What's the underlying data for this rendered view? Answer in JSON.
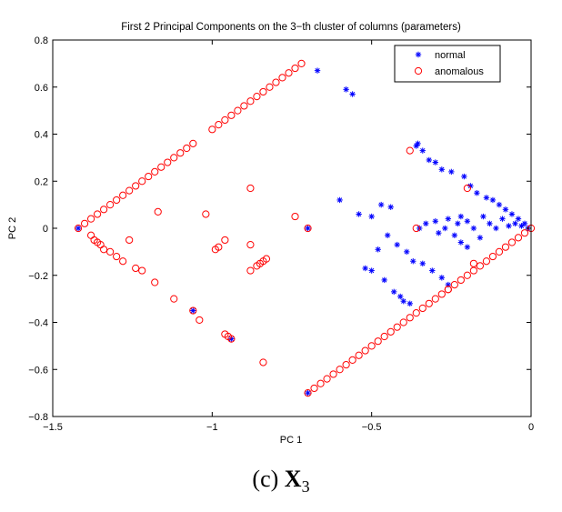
{
  "chart_data": {
    "type": "scatter",
    "title": "First 2 Principal Components on the 3−th cluster of columns (parameters)",
    "xlabel": "PC 1",
    "ylabel": "PC 2",
    "xlim": [
      -1.5,
      0
    ],
    "ylim": [
      -0.8,
      0.8
    ],
    "xticks": [
      -1.5,
      -1,
      -0.5,
      0
    ],
    "xtick_labels": [
      "−1.5",
      "−1",
      "−0.5",
      "0"
    ],
    "yticks": [
      -0.8,
      -0.6,
      -0.4,
      -0.2,
      0,
      0.2,
      0.4,
      0.6,
      0.8
    ],
    "ytick_labels": [
      "−0.8",
      "−0.6",
      "−0.4",
      "−0.2",
      "0",
      "0.2",
      "0.4",
      "0.6",
      "0.8"
    ],
    "grid": false,
    "legend_position": "top-right",
    "series": [
      {
        "name": "normal",
        "marker": "asterisk",
        "color": "#0000ff",
        "points": [
          [
            -1.42,
            0.0
          ],
          [
            -1.06,
            -0.35
          ],
          [
            -0.94,
            -0.47
          ],
          [
            -0.7,
            0.0
          ],
          [
            -0.7,
            -0.7
          ],
          [
            -0.67,
            0.67
          ],
          [
            -0.6,
            0.12
          ],
          [
            -0.58,
            0.59
          ],
          [
            -0.56,
            0.57
          ],
          [
            -0.54,
            0.06
          ],
          [
            -0.52,
            -0.17
          ],
          [
            -0.5,
            0.05
          ],
          [
            -0.5,
            -0.18
          ],
          [
            -0.48,
            -0.09
          ],
          [
            -0.47,
            0.1
          ],
          [
            -0.46,
            -0.22
          ],
          [
            -0.45,
            -0.03
          ],
          [
            -0.44,
            0.09
          ],
          [
            -0.43,
            -0.27
          ],
          [
            -0.42,
            -0.07
          ],
          [
            -0.41,
            -0.29
          ],
          [
            -0.4,
            -0.31
          ],
          [
            -0.39,
            -0.1
          ],
          [
            -0.38,
            -0.32
          ],
          [
            -0.37,
            -0.14
          ],
          [
            -0.36,
            0.35
          ],
          [
            -0.355,
            0.36
          ],
          [
            -0.35,
            0.0
          ],
          [
            -0.34,
            -0.15
          ],
          [
            -0.34,
            0.33
          ],
          [
            -0.33,
            0.02
          ],
          [
            -0.32,
            0.29
          ],
          [
            -0.31,
            -0.18
          ],
          [
            -0.3,
            0.03
          ],
          [
            -0.3,
            0.28
          ],
          [
            -0.29,
            -0.02
          ],
          [
            -0.28,
            -0.21
          ],
          [
            -0.28,
            0.25
          ],
          [
            -0.27,
            0.0
          ],
          [
            -0.26,
            -0.24
          ],
          [
            -0.26,
            0.04
          ],
          [
            -0.25,
            0.24
          ],
          [
            -0.24,
            -0.03
          ],
          [
            -0.23,
            0.02
          ],
          [
            -0.22,
            -0.06
          ],
          [
            -0.22,
            0.05
          ],
          [
            -0.21,
            0.22
          ],
          [
            -0.2,
            -0.08
          ],
          [
            -0.2,
            0.03
          ],
          [
            -0.19,
            0.18
          ],
          [
            -0.18,
            0.0
          ],
          [
            -0.17,
            0.15
          ],
          [
            -0.16,
            -0.04
          ],
          [
            -0.15,
            0.05
          ],
          [
            -0.14,
            0.13
          ],
          [
            -0.13,
            0.02
          ],
          [
            -0.12,
            0.12
          ],
          [
            -0.11,
            0.0
          ],
          [
            -0.1,
            0.1
          ],
          [
            -0.09,
            0.04
          ],
          [
            -0.08,
            0.08
          ],
          [
            -0.07,
            0.01
          ],
          [
            -0.06,
            0.06
          ],
          [
            -0.05,
            0.02
          ],
          [
            -0.04,
            0.04
          ],
          [
            -0.03,
            0.01
          ],
          [
            -0.02,
            0.02
          ],
          [
            -0.01,
            0.0
          ]
        ]
      },
      {
        "name": "anomalous",
        "marker": "circle",
        "color": "#ff0000",
        "points": [
          [
            -1.42,
            0.0
          ],
          [
            -1.4,
            0.02
          ],
          [
            -1.38,
            0.04
          ],
          [
            -1.36,
            0.06
          ],
          [
            -1.34,
            0.08
          ],
          [
            -1.32,
            0.1
          ],
          [
            -1.3,
            0.12
          ],
          [
            -1.28,
            0.14
          ],
          [
            -1.26,
            0.16
          ],
          [
            -1.24,
            0.18
          ],
          [
            -1.22,
            0.2
          ],
          [
            -1.2,
            0.22
          ],
          [
            -1.18,
            0.24
          ],
          [
            -1.16,
            0.26
          ],
          [
            -1.14,
            0.28
          ],
          [
            -1.12,
            0.3
          ],
          [
            -1.1,
            0.32
          ],
          [
            -1.08,
            0.34
          ],
          [
            -1.06,
            0.36
          ],
          [
            -1.0,
            0.42
          ],
          [
            -0.98,
            0.44
          ],
          [
            -0.96,
            0.46
          ],
          [
            -0.94,
            0.48
          ],
          [
            -0.92,
            0.5
          ],
          [
            -0.9,
            0.52
          ],
          [
            -0.88,
            0.54
          ],
          [
            -0.86,
            0.56
          ],
          [
            -0.84,
            0.58
          ],
          [
            -0.82,
            0.6
          ],
          [
            -0.8,
            0.62
          ],
          [
            -0.78,
            0.64
          ],
          [
            -0.76,
            0.66
          ],
          [
            -0.74,
            0.68
          ],
          [
            -0.72,
            0.7
          ],
          [
            -1.38,
            -0.03
          ],
          [
            -1.37,
            -0.05
          ],
          [
            -1.36,
            -0.06
          ],
          [
            -1.35,
            -0.07
          ],
          [
            -1.34,
            -0.09
          ],
          [
            -1.32,
            -0.1
          ],
          [
            -1.3,
            -0.12
          ],
          [
            -1.28,
            -0.14
          ],
          [
            -1.26,
            -0.05
          ],
          [
            -1.24,
            -0.17
          ],
          [
            -1.22,
            -0.18
          ],
          [
            -1.18,
            -0.23
          ],
          [
            -1.17,
            0.07
          ],
          [
            -1.12,
            -0.3
          ],
          [
            -1.06,
            -0.35
          ],
          [
            -1.04,
            -0.39
          ],
          [
            -1.02,
            0.06
          ],
          [
            -0.99,
            -0.09
          ],
          [
            -0.98,
            -0.08
          ],
          [
            -0.96,
            -0.05
          ],
          [
            -0.96,
            -0.45
          ],
          [
            -0.95,
            -0.46
          ],
          [
            -0.94,
            -0.47
          ],
          [
            -0.88,
            0.17
          ],
          [
            -0.88,
            -0.07
          ],
          [
            -0.88,
            -0.18
          ],
          [
            -0.86,
            -0.16
          ],
          [
            -0.85,
            -0.15
          ],
          [
            -0.84,
            -0.14
          ],
          [
            -0.83,
            -0.13
          ],
          [
            -0.84,
            -0.57
          ],
          [
            -0.74,
            0.05
          ],
          [
            -0.7,
            0.0
          ],
          [
            -0.7,
            -0.7
          ],
          [
            -0.68,
            -0.68
          ],
          [
            -0.66,
            -0.66
          ],
          [
            -0.64,
            -0.64
          ],
          [
            -0.62,
            -0.62
          ],
          [
            -0.6,
            -0.6
          ],
          [
            -0.58,
            -0.58
          ],
          [
            -0.56,
            -0.56
          ],
          [
            -0.54,
            -0.54
          ],
          [
            -0.52,
            -0.52
          ],
          [
            -0.5,
            -0.5
          ],
          [
            -0.48,
            -0.48
          ],
          [
            -0.46,
            -0.46
          ],
          [
            -0.44,
            -0.44
          ],
          [
            -0.42,
            -0.42
          ],
          [
            -0.4,
            -0.4
          ],
          [
            -0.38,
            -0.38
          ],
          [
            -0.36,
            -0.36
          ],
          [
            -0.34,
            -0.34
          ],
          [
            -0.32,
            -0.32
          ],
          [
            -0.3,
            -0.3
          ],
          [
            -0.28,
            -0.28
          ],
          [
            -0.26,
            -0.26
          ],
          [
            -0.24,
            -0.24
          ],
          [
            -0.22,
            -0.22
          ],
          [
            -0.2,
            -0.2
          ],
          [
            -0.18,
            -0.18
          ],
          [
            -0.16,
            -0.16
          ],
          [
            -0.14,
            -0.14
          ],
          [
            -0.12,
            -0.12
          ],
          [
            -0.1,
            -0.1
          ],
          [
            -0.08,
            -0.08
          ],
          [
            -0.06,
            -0.06
          ],
          [
            -0.04,
            -0.04
          ],
          [
            -0.02,
            -0.02
          ],
          [
            0.0,
            0.0
          ],
          [
            -0.38,
            0.33
          ],
          [
            -0.36,
            0.0
          ],
          [
            -0.26,
            -0.26
          ],
          [
            -0.2,
            0.17
          ],
          [
            -0.18,
            -0.15
          ]
        ]
      }
    ]
  },
  "caption": {
    "prefix": "(c)",
    "symbol": "X",
    "subscript": "3"
  }
}
